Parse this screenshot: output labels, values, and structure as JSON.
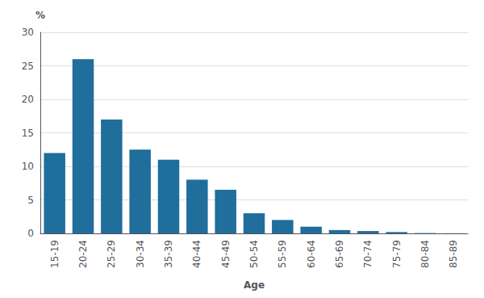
{
  "chart_data": {
    "type": "bar",
    "categories": [
      "15-19",
      "20-24",
      "25-29",
      "30-34",
      "35-39",
      "40-44",
      "45-49",
      "50-54",
      "55-59",
      "60-64",
      "65-69",
      "70-74",
      "75-79",
      "80-84",
      "85-89"
    ],
    "values": [
      12.0,
      26.0,
      17.0,
      12.5,
      11.0,
      8.0,
      6.5,
      3.0,
      2.0,
      1.0,
      0.5,
      0.35,
      0.2,
      0.05,
      0.02
    ],
    "color": "#1f6e9c",
    "xlabel": "Age",
    "ylabel": "%",
    "ylim": [
      0,
      30
    ],
    "yticks": [
      0,
      5,
      10,
      15,
      20,
      25,
      30
    ],
    "grid": true
  }
}
